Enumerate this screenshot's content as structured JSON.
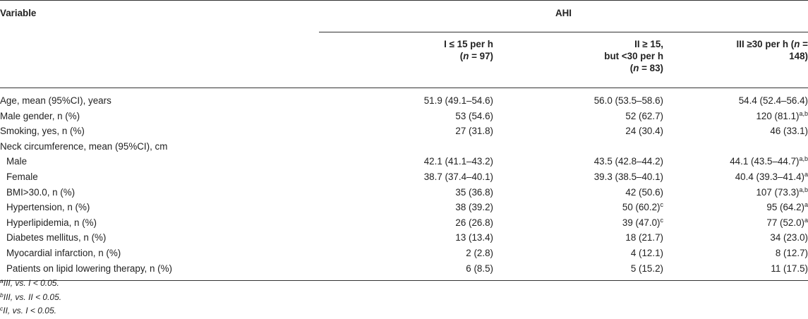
{
  "table": {
    "variable_header": "Variable",
    "group_header": "AHI",
    "columns": [
      {
        "line1": "I ≤ 15 per h",
        "line2_pre": "(",
        "line2_n": "n",
        "line2_post": " = 97)",
        "line3": ""
      },
      {
        "line1": "II ≥ 15,",
        "line2_pre": "but <30 per h",
        "line2_n": "",
        "line2_post": "",
        "line3": "(n = 83)"
      },
      {
        "line1": "III ≥30 per h (n =",
        "line2_pre": "148)",
        "line2_n": "",
        "line2_post": "",
        "line3": ""
      }
    ],
    "rows": [
      {
        "label": "Age, mean (95%CI), years",
        "indent": false,
        "v1": "51.9 (49.1–54.6)",
        "s1": "",
        "v2": "56.0 (53.5–58.6)",
        "s2": "",
        "v3": "54.4 (52.4–56.4)",
        "s3": ""
      },
      {
        "label": "Male gender, n (%)",
        "indent": false,
        "v1": "53 (54.6)",
        "s1": "",
        "v2": "52 (62.7)",
        "s2": "",
        "v3": "120 (81.1)",
        "s3": "a,b"
      },
      {
        "label": "Smoking, yes, n (%)",
        "indent": false,
        "v1": "27 (31.8)",
        "s1": "",
        "v2": "24 (30.4)",
        "s2": "",
        "v3": "46 (33.1)",
        "s3": ""
      },
      {
        "label": "Neck circumference, mean (95%CI), cm",
        "indent": false,
        "v1": "",
        "s1": "",
        "v2": "",
        "s2": "",
        "v3": "",
        "s3": ""
      },
      {
        "label": "Male",
        "indent": true,
        "v1": "42.1 (41.1–43.2)",
        "s1": "",
        "v2": "43.5 (42.8–44.2)",
        "s2": "",
        "v3": "44.1 (43.5–44.7)",
        "s3": "a,b"
      },
      {
        "label": "Female",
        "indent": true,
        "v1": "38.7 (37.4–40.1)",
        "s1": "",
        "v2": "39.3 (38.5–40.1)",
        "s2": "",
        "v3": "40.4 (39.3–41.4)",
        "s3": "a"
      },
      {
        "label": "BMI>30.0, n (%)",
        "indent": true,
        "v1": "35 (36.8)",
        "s1": "",
        "v2": "42 (50.6)",
        "s2": "",
        "v3": "107 (73.3)",
        "s3": "a,b"
      },
      {
        "label": "Hypertension, n (%)",
        "indent": true,
        "v1": "38 (39.2)",
        "s1": "",
        "v2": "50 (60.2)",
        "s2": "c",
        "v3": "95 (64.2)",
        "s3": "a"
      },
      {
        "label": "Hyperlipidemia, n (%)",
        "indent": true,
        "v1": "26 (26.8)",
        "s1": "",
        "v2": "39 (47.0)",
        "s2": "c",
        "v3": "77 (52.0)",
        "s3": "a"
      },
      {
        "label": "Diabetes mellitus, n (%)",
        "indent": true,
        "v1": "13 (13.4)",
        "s1": "",
        "v2": "18 (21.7)",
        "s2": "",
        "v3": "34 (23.0)",
        "s3": ""
      },
      {
        "label": "Myocardial infarction, n (%)",
        "indent": true,
        "v1": "2 (2.8)",
        "s1": "",
        "v2": "4 (12.1)",
        "s2": "",
        "v3": "8 (12.7)",
        "s3": ""
      },
      {
        "label": "Patients on lipid lowering therapy, n (%)",
        "indent": true,
        "v1": "6 (8.5)",
        "s1": "",
        "v2": "5 (15.2)",
        "s2": "",
        "v3": "11 (17.5)",
        "s3": ""
      }
    ]
  },
  "footnotes": [
    {
      "mark": "a",
      "text": "III, vs. I < 0.05."
    },
    {
      "mark": "b",
      "text": "III, vs. II < 0.05."
    },
    {
      "mark": "c",
      "text": "II, vs. I < 0.05."
    }
  ]
}
